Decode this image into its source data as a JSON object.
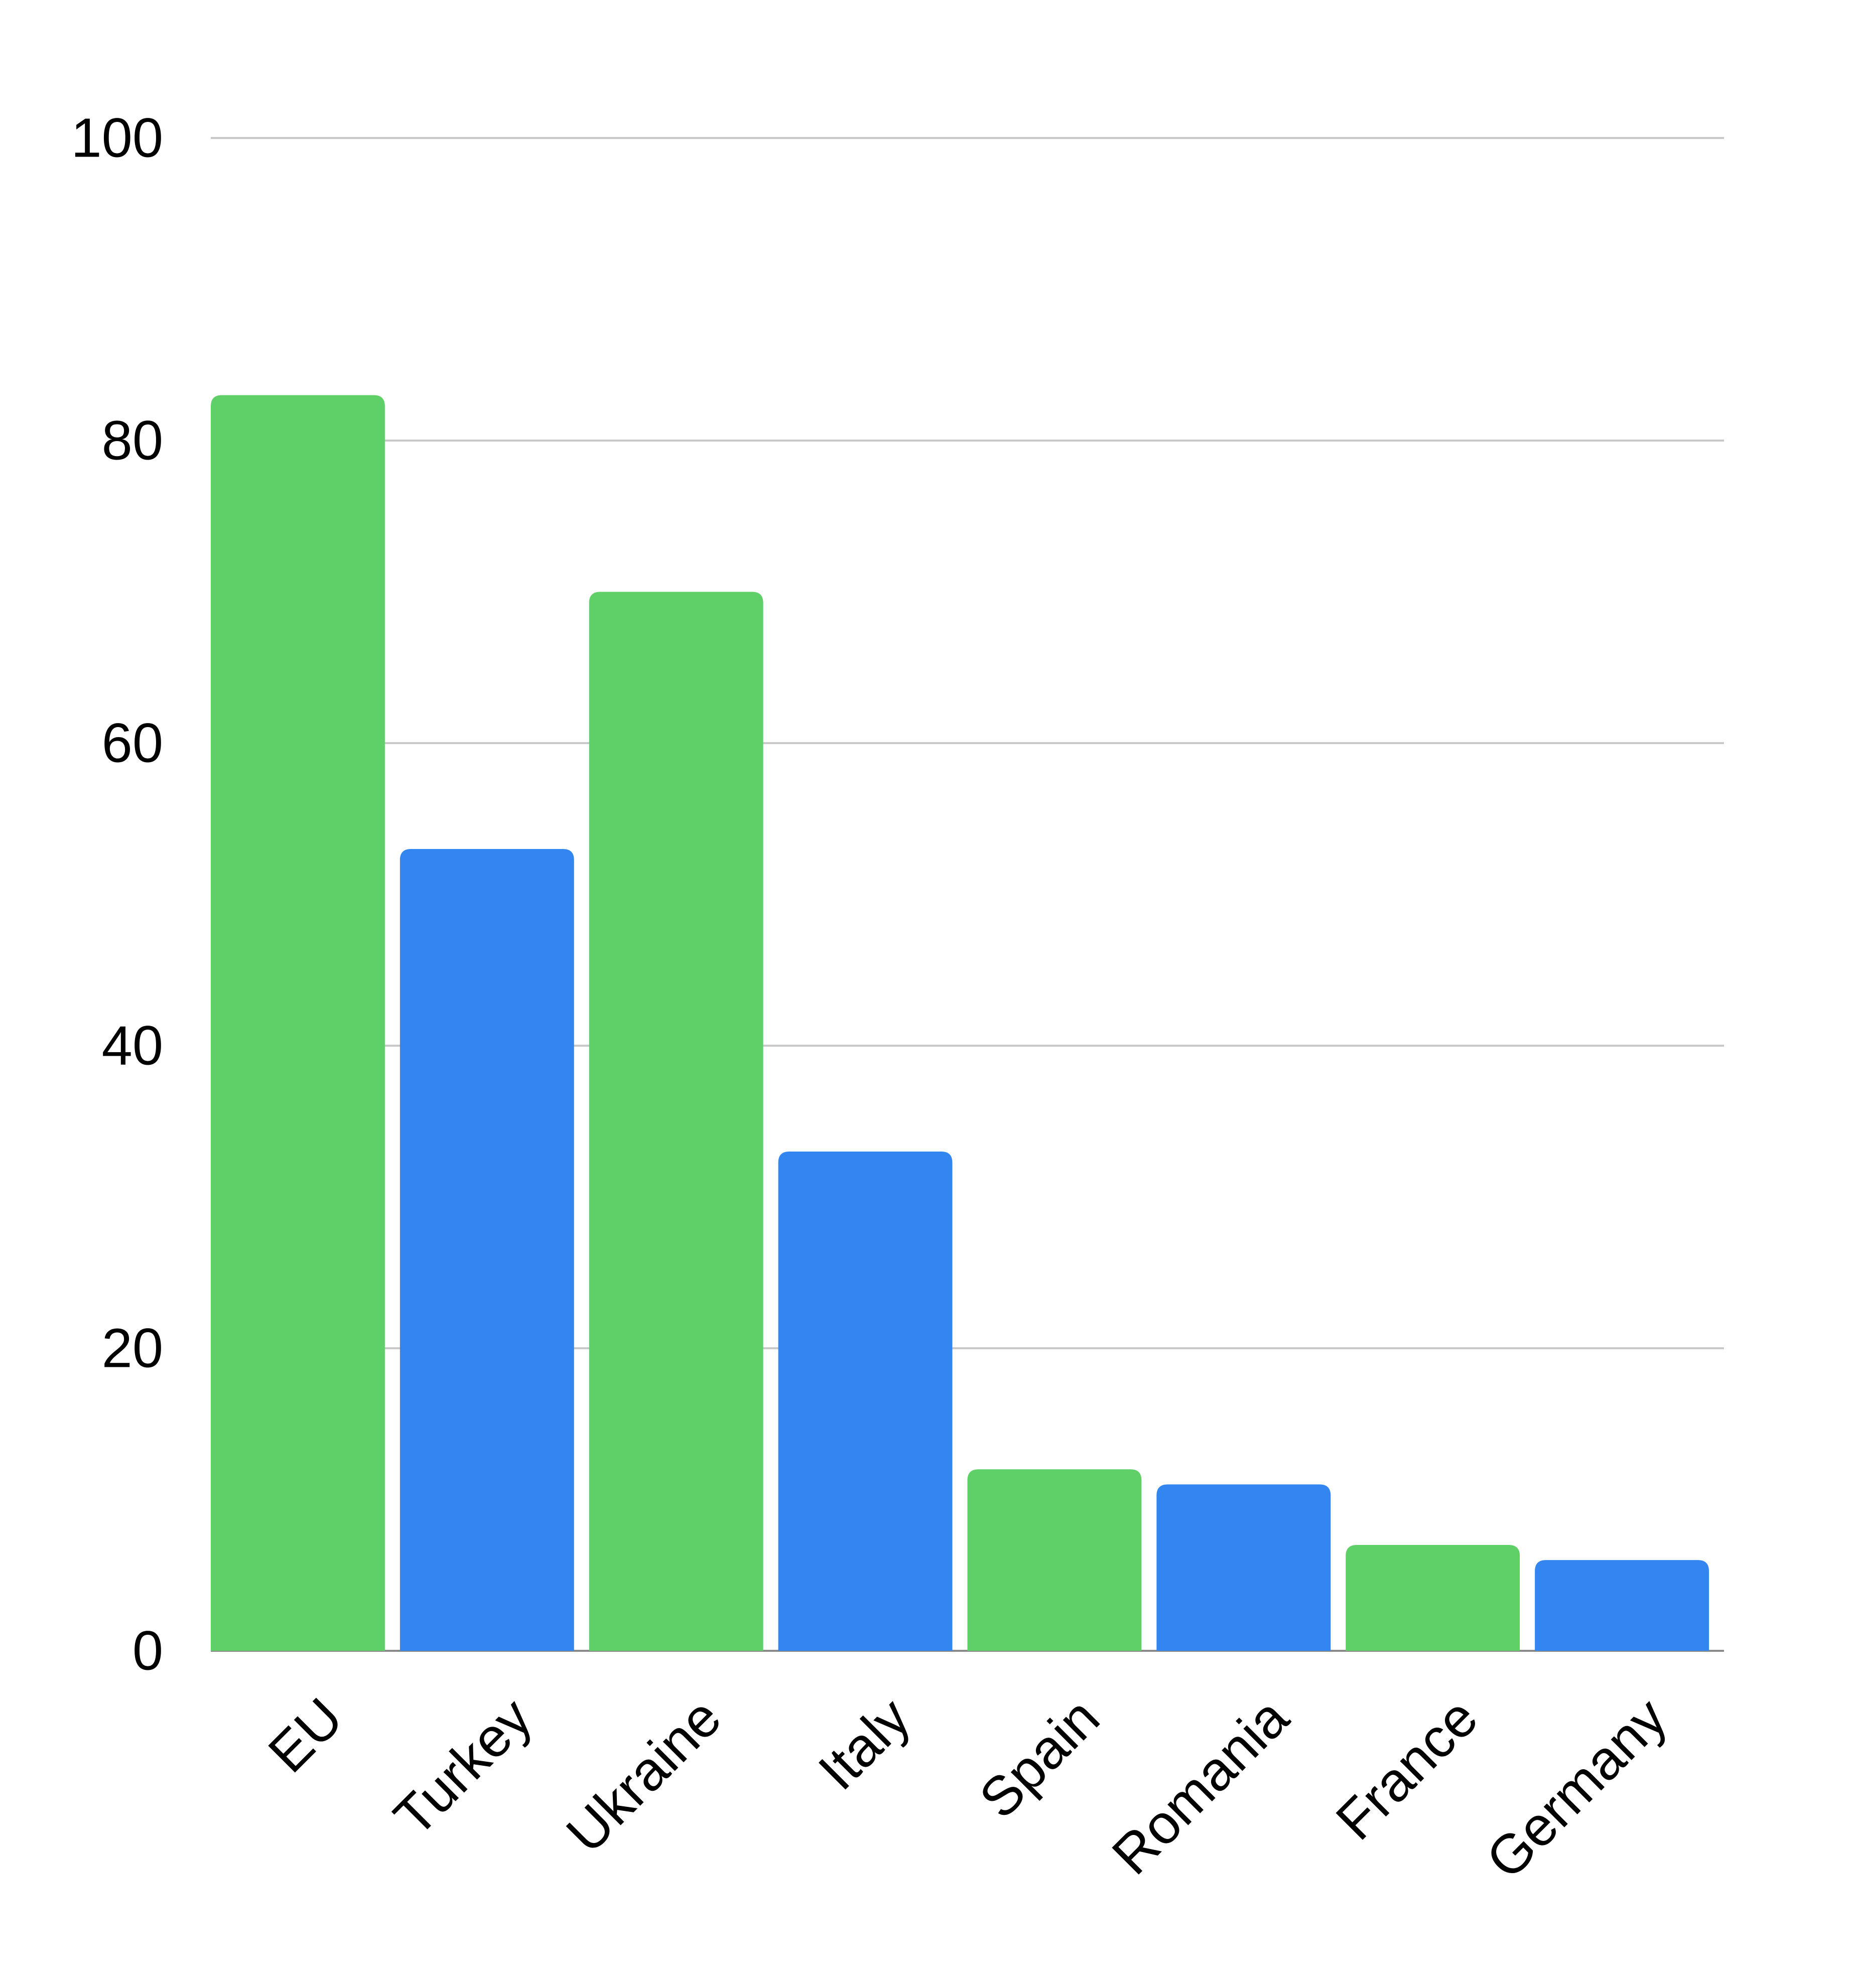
{
  "chart_data": {
    "type": "bar",
    "title": "",
    "xlabel": "",
    "ylabel": "",
    "categories": [
      "EU",
      "Turkey",
      "Ukraine",
      "Italy",
      "Spain",
      "Romania",
      "France",
      "Germany"
    ],
    "values": [
      83,
      53,
      70,
      33,
      12,
      11,
      7,
      6
    ],
    "bar_colors": [
      "#5fd068",
      "#3386f0",
      "#5fd068",
      "#3386f0",
      "#5fd068",
      "#3386f0",
      "#5fd068",
      "#3386f0"
    ],
    "ylim": [
      0,
      100
    ],
    "yticks": [
      0,
      20,
      40,
      60,
      80,
      100
    ],
    "grid": true,
    "legend": "none"
  }
}
